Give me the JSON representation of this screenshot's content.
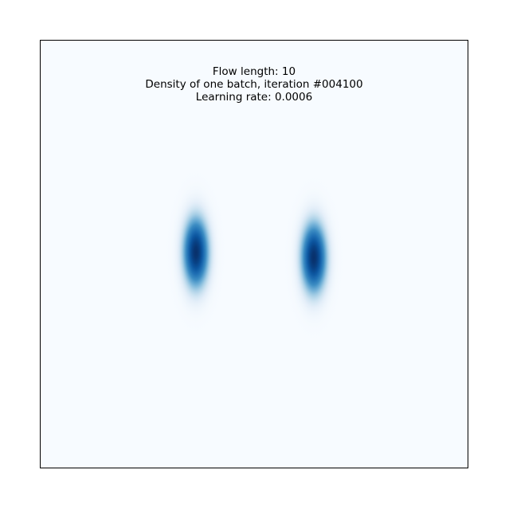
{
  "chart_data": {
    "type": "heatmap",
    "title_lines": [
      "Flow length: 10",
      "Density of one batch, iteration #004100",
      "Learning rate: 0.0006"
    ],
    "xlabel": "",
    "ylabel": "",
    "axes_ticks": false,
    "grid": false,
    "colormap": "Blues",
    "colors": {
      "background": "#f7fbff",
      "low": "#deebf7",
      "mid": "#6baed6",
      "high": "#08306b"
    },
    "xlim": [
      -4,
      4
    ],
    "ylim": [
      -4,
      4
    ],
    "modes": [
      {
        "name": "",
        "cx": -1.1,
        "cy": 0.05,
        "sx": 0.2,
        "sy": 0.55,
        "weight": 1.0
      },
      {
        "name": "",
        "cx": 1.1,
        "cy": -0.05,
        "sx": 0.2,
        "sy": 0.55,
        "weight": 1.0
      }
    ]
  }
}
